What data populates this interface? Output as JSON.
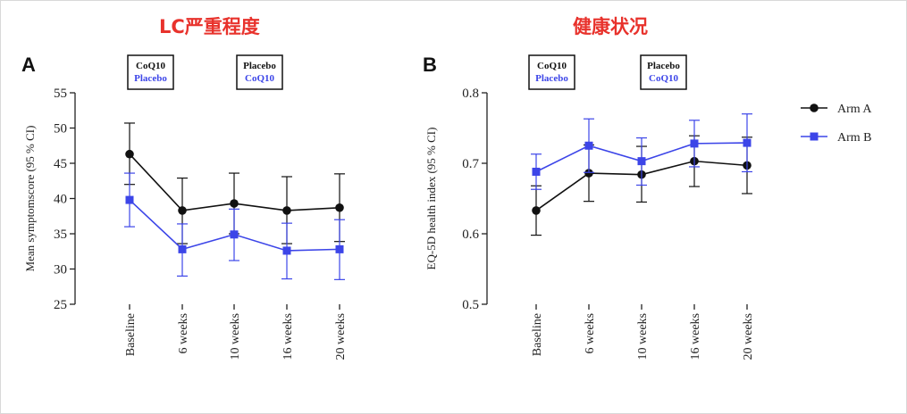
{
  "headers": {
    "left": "LC严重程度",
    "right": "健康状况"
  },
  "colors": {
    "arm_a": "#111111",
    "arm_b": "#3c45e8",
    "header": "#e8322c"
  },
  "legend": [
    {
      "label": "Arm A",
      "color": "#111111",
      "marker": "circle"
    },
    {
      "label": "Arm B",
      "color": "#3c45e8",
      "marker": "square"
    }
  ],
  "chart_data": [
    {
      "type": "line",
      "panel": "A",
      "title": "LC严重程度",
      "xlabel": "",
      "ylabel": "Mean symptomscore (95 % CI)",
      "categories": [
        "Baseline",
        "6 weeks",
        "10 weeks",
        "16 weeks",
        "20 weeks"
      ],
      "ylim": [
        25,
        55
      ],
      "yticks": [
        25,
        30,
        35,
        40,
        45,
        50,
        55
      ],
      "series": [
        {
          "name": "Arm A",
          "values": [
            46.3,
            38.3,
            39.3,
            38.3,
            38.7
          ],
          "ci_low": [
            42.0,
            33.6,
            35.0,
            33.6,
            33.9
          ],
          "ci_high": [
            50.7,
            42.9,
            43.6,
            43.1,
            43.5
          ]
        },
        {
          "name": "Arm B",
          "values": [
            39.8,
            32.8,
            34.9,
            32.6,
            32.8
          ],
          "ci_low": [
            36.0,
            29.0,
            31.2,
            28.6,
            28.5
          ],
          "ci_high": [
            43.6,
            36.4,
            38.5,
            36.5,
            37.0
          ]
        }
      ],
      "annotations": [
        {
          "line1": "CoQ10",
          "line2": "Placebo"
        },
        {
          "line1": "Placebo",
          "line2": "CoQ10"
        }
      ]
    },
    {
      "type": "line",
      "panel": "B",
      "title": "健康状况",
      "xlabel": "",
      "ylabel": "EQ-5D health index (95 % CI)",
      "categories": [
        "Baseline",
        "6 weeks",
        "10 weeks",
        "16 weeks",
        "20 weeks"
      ],
      "ylim": [
        0.5,
        0.8
      ],
      "yticks": [
        0.5,
        0.6,
        0.7,
        0.8
      ],
      "series": [
        {
          "name": "Arm A",
          "values": [
            0.633,
            0.686,
            0.684,
            0.703,
            0.697
          ],
          "ci_low": [
            0.598,
            0.646,
            0.645,
            0.667,
            0.657
          ],
          "ci_high": [
            0.668,
            0.726,
            0.724,
            0.739,
            0.737
          ]
        },
        {
          "name": "Arm B",
          "values": [
            0.688,
            0.725,
            0.703,
            0.728,
            0.729
          ],
          "ci_low": [
            0.663,
            0.687,
            0.669,
            0.695,
            0.688
          ],
          "ci_high": [
            0.713,
            0.763,
            0.736,
            0.761,
            0.77
          ]
        }
      ],
      "annotations": [
        {
          "line1": "CoQ10",
          "line2": "Placebo"
        },
        {
          "line1": "Placebo",
          "line2": "CoQ10"
        }
      ]
    }
  ]
}
